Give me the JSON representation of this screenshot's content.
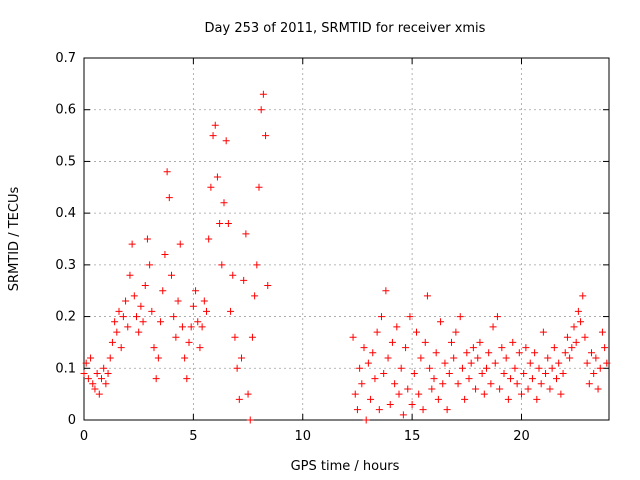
{
  "chart_data": {
    "type": "scatter",
    "title": "Day 253 of 2011, SRMTID for receiver xmis",
    "xlabel": "GPS time / hours",
    "ylabel": "SRMTID / TECUs",
    "xlim": [
      0,
      24
    ],
    "ylim": [
      0,
      0.7
    ],
    "x_ticks": [
      0,
      5,
      10,
      15,
      20
    ],
    "y_ticks": [
      0,
      0.1,
      0.2,
      0.3,
      0.4,
      0.5,
      0.6,
      0.7
    ],
    "x_tick_labels": [
      "0",
      "5",
      "10",
      "15",
      "20"
    ],
    "y_tick_labels": [
      "0",
      "0.1",
      "0.2",
      "0.3",
      "0.4",
      "0.5",
      "0.6",
      "0.7"
    ],
    "grid": true,
    "marker": "plus",
    "series": [
      {
        "name": "SRMTID",
        "color": "#ff0000",
        "points": [
          [
            0.0,
            0.09
          ],
          [
            0.1,
            0.11
          ],
          [
            0.2,
            0.08
          ],
          [
            0.3,
            0.12
          ],
          [
            0.4,
            0.07
          ],
          [
            0.5,
            0.06
          ],
          [
            0.6,
            0.09
          ],
          [
            0.7,
            0.05
          ],
          [
            0.8,
            0.08
          ],
          [
            0.9,
            0.1
          ],
          [
            1.0,
            0.07
          ],
          [
            1.1,
            0.09
          ],
          [
            1.2,
            0.12
          ],
          [
            1.3,
            0.15
          ],
          [
            1.4,
            0.19
          ],
          [
            1.5,
            0.17
          ],
          [
            1.6,
            0.21
          ],
          [
            1.7,
            0.14
          ],
          [
            1.8,
            0.2
          ],
          [
            1.9,
            0.23
          ],
          [
            2.0,
            0.18
          ],
          [
            2.1,
            0.28
          ],
          [
            2.2,
            0.34
          ],
          [
            2.3,
            0.24
          ],
          [
            2.4,
            0.2
          ],
          [
            2.5,
            0.17
          ],
          [
            2.6,
            0.22
          ],
          [
            2.7,
            0.19
          ],
          [
            2.8,
            0.26
          ],
          [
            2.9,
            0.35
          ],
          [
            3.0,
            0.3
          ],
          [
            3.1,
            0.21
          ],
          [
            3.2,
            0.14
          ],
          [
            3.3,
            0.08
          ],
          [
            3.4,
            0.12
          ],
          [
            3.5,
            0.19
          ],
          [
            3.6,
            0.25
          ],
          [
            3.7,
            0.32
          ],
          [
            3.8,
            0.48
          ],
          [
            3.9,
            0.43
          ],
          [
            4.0,
            0.28
          ],
          [
            4.1,
            0.2
          ],
          [
            4.2,
            0.16
          ],
          [
            4.3,
            0.23
          ],
          [
            4.4,
            0.34
          ],
          [
            4.5,
            0.18
          ],
          [
            4.6,
            0.12
          ],
          [
            4.7,
            0.08
          ],
          [
            4.8,
            0.15
          ],
          [
            4.9,
            0.18
          ],
          [
            5.0,
            0.22
          ],
          [
            5.1,
            0.25
          ],
          [
            5.2,
            0.19
          ],
          [
            5.3,
            0.14
          ],
          [
            5.4,
            0.18
          ],
          [
            5.5,
            0.23
          ],
          [
            5.6,
            0.21
          ],
          [
            5.7,
            0.35
          ],
          [
            5.8,
            0.45
          ],
          [
            5.9,
            0.55
          ],
          [
            6.0,
            0.57
          ],
          [
            6.1,
            0.47
          ],
          [
            6.2,
            0.38
          ],
          [
            6.3,
            0.3
          ],
          [
            6.4,
            0.42
          ],
          [
            6.5,
            0.54
          ],
          [
            6.6,
            0.38
          ],
          [
            6.7,
            0.21
          ],
          [
            6.8,
            0.28
          ],
          [
            6.9,
            0.16
          ],
          [
            7.0,
            0.1
          ],
          [
            7.1,
            0.04
          ],
          [
            7.2,
            0.12
          ],
          [
            7.3,
            0.27
          ],
          [
            7.4,
            0.36
          ],
          [
            7.5,
            0.05
          ],
          [
            7.6,
            0.0
          ],
          [
            7.7,
            0.16
          ],
          [
            7.8,
            0.24
          ],
          [
            7.9,
            0.3
          ],
          [
            8.0,
            0.45
          ],
          [
            8.1,
            0.6
          ],
          [
            8.2,
            0.63
          ],
          [
            8.3,
            0.55
          ],
          [
            8.4,
            0.26
          ],
          [
            12.3,
            0.16
          ],
          [
            12.4,
            0.05
          ],
          [
            12.5,
            0.02
          ],
          [
            12.6,
            0.1
          ],
          [
            12.7,
            0.07
          ],
          [
            12.8,
            0.14
          ],
          [
            12.9,
            0.0
          ],
          [
            13.0,
            0.11
          ],
          [
            13.1,
            0.04
          ],
          [
            13.2,
            0.13
          ],
          [
            13.3,
            0.08
          ],
          [
            13.4,
            0.17
          ],
          [
            13.5,
            0.02
          ],
          [
            13.6,
            0.2
          ],
          [
            13.7,
            0.09
          ],
          [
            13.8,
            0.25
          ],
          [
            13.9,
            0.12
          ],
          [
            14.0,
            0.03
          ],
          [
            14.1,
            0.15
          ],
          [
            14.2,
            0.07
          ],
          [
            14.3,
            0.18
          ],
          [
            14.4,
            0.05
          ],
          [
            14.5,
            0.1
          ],
          [
            14.6,
            0.01
          ],
          [
            14.7,
            0.14
          ],
          [
            14.8,
            0.06
          ],
          [
            14.9,
            0.2
          ],
          [
            15.0,
            0.03
          ],
          [
            15.1,
            0.09
          ],
          [
            15.2,
            0.17
          ],
          [
            15.3,
            0.05
          ],
          [
            15.4,
            0.12
          ],
          [
            15.5,
            0.02
          ],
          [
            15.6,
            0.15
          ],
          [
            15.7,
            0.24
          ],
          [
            15.8,
            0.1
          ],
          [
            15.9,
            0.06
          ],
          [
            16.0,
            0.08
          ],
          [
            16.1,
            0.13
          ],
          [
            16.2,
            0.04
          ],
          [
            16.3,
            0.19
          ],
          [
            16.4,
            0.07
          ],
          [
            16.5,
            0.11
          ],
          [
            16.6,
            0.02
          ],
          [
            16.7,
            0.09
          ],
          [
            16.8,
            0.15
          ],
          [
            16.9,
            0.12
          ],
          [
            17.0,
            0.17
          ],
          [
            17.1,
            0.07
          ],
          [
            17.2,
            0.2
          ],
          [
            17.3,
            0.1
          ],
          [
            17.4,
            0.04
          ],
          [
            17.5,
            0.13
          ],
          [
            17.6,
            0.08
          ],
          [
            17.7,
            0.11
          ],
          [
            17.8,
            0.14
          ],
          [
            17.9,
            0.06
          ],
          [
            18.0,
            0.12
          ],
          [
            18.1,
            0.15
          ],
          [
            18.2,
            0.09
          ],
          [
            18.3,
            0.05
          ],
          [
            18.4,
            0.1
          ],
          [
            18.5,
            0.13
          ],
          [
            18.6,
            0.07
          ],
          [
            18.7,
            0.18
          ],
          [
            18.8,
            0.11
          ],
          [
            18.9,
            0.2
          ],
          [
            19.0,
            0.06
          ],
          [
            19.1,
            0.14
          ],
          [
            19.2,
            0.09
          ],
          [
            19.3,
            0.12
          ],
          [
            19.4,
            0.04
          ],
          [
            19.5,
            0.08
          ],
          [
            19.6,
            0.15
          ],
          [
            19.7,
            0.1
          ],
          [
            19.8,
            0.07
          ],
          [
            19.9,
            0.13
          ],
          [
            20.0,
            0.05
          ],
          [
            20.1,
            0.09
          ],
          [
            20.2,
            0.14
          ],
          [
            20.3,
            0.06
          ],
          [
            20.4,
            0.11
          ],
          [
            20.5,
            0.08
          ],
          [
            20.6,
            0.13
          ],
          [
            20.7,
            0.04
          ],
          [
            20.8,
            0.1
          ],
          [
            20.9,
            0.07
          ],
          [
            21.0,
            0.17
          ],
          [
            21.1,
            0.09
          ],
          [
            21.2,
            0.12
          ],
          [
            21.3,
            0.06
          ],
          [
            21.4,
            0.1
          ],
          [
            21.5,
            0.14
          ],
          [
            21.6,
            0.08
          ],
          [
            21.7,
            0.11
          ],
          [
            21.8,
            0.05
          ],
          [
            21.9,
            0.09
          ],
          [
            22.0,
            0.13
          ],
          [
            22.1,
            0.16
          ],
          [
            22.2,
            0.12
          ],
          [
            22.3,
            0.14
          ],
          [
            22.4,
            0.18
          ],
          [
            22.5,
            0.15
          ],
          [
            22.6,
            0.21
          ],
          [
            22.7,
            0.19
          ],
          [
            22.8,
            0.24
          ],
          [
            22.9,
            0.16
          ],
          [
            23.0,
            0.11
          ],
          [
            23.1,
            0.07
          ],
          [
            23.2,
            0.13
          ],
          [
            23.3,
            0.09
          ],
          [
            23.4,
            0.12
          ],
          [
            23.5,
            0.06
          ],
          [
            23.6,
            0.1
          ],
          [
            23.7,
            0.17
          ],
          [
            23.8,
            0.14
          ],
          [
            23.9,
            0.11
          ]
        ]
      }
    ]
  }
}
